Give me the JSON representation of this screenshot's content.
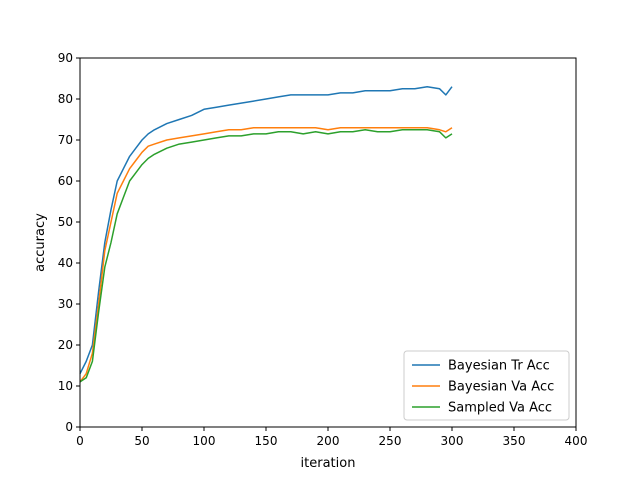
{
  "chart_data": {
    "type": "line",
    "title": "",
    "xlabel": "iteration",
    "ylabel": "accuracy",
    "xlim": [
      0,
      400
    ],
    "ylim": [
      0,
      90
    ],
    "xticks": [
      0,
      50,
      100,
      150,
      200,
      250,
      300,
      350,
      400
    ],
    "yticks": [
      0,
      10,
      20,
      30,
      40,
      50,
      60,
      70,
      80,
      90
    ],
    "grid": false,
    "legend_position": "lower-right",
    "series": [
      {
        "name": "Bayesian Tr Acc",
        "color": "#1f77b4",
        "x": [
          0,
          5,
          10,
          15,
          20,
          25,
          30,
          35,
          40,
          45,
          50,
          55,
          60,
          70,
          80,
          90,
          100,
          110,
          120,
          130,
          140,
          150,
          160,
          170,
          180,
          190,
          200,
          210,
          220,
          230,
          240,
          250,
          260,
          270,
          280,
          290,
          295,
          300
        ],
        "y": [
          13,
          16,
          20,
          33,
          45,
          53,
          60,
          63,
          66,
          68,
          70,
          71.5,
          72.5,
          74,
          75,
          76,
          77.5,
          78,
          78.5,
          79,
          79.5,
          80,
          80.5,
          81,
          81,
          81,
          81,
          81.5,
          81.5,
          82,
          82,
          82,
          82.5,
          82.5,
          83,
          82.5,
          81,
          83
        ]
      },
      {
        "name": "Bayesian Va Acc",
        "color": "#ff7f0e",
        "x": [
          0,
          5,
          10,
          15,
          20,
          25,
          30,
          35,
          40,
          45,
          50,
          55,
          60,
          70,
          80,
          90,
          100,
          110,
          120,
          130,
          140,
          150,
          160,
          170,
          180,
          190,
          200,
          210,
          220,
          230,
          240,
          250,
          260,
          270,
          280,
          290,
          295,
          300
        ],
        "y": [
          11,
          13,
          18,
          30,
          43,
          50,
          57,
          60,
          63,
          65,
          67,
          68.5,
          69,
          70,
          70.5,
          71,
          71.5,
          72,
          72.5,
          72.5,
          73,
          73,
          73,
          73,
          73,
          73,
          72.5,
          73,
          73,
          73,
          73,
          73,
          73,
          73,
          73,
          72.5,
          72,
          73
        ]
      },
      {
        "name": "Sampled Va Acc",
        "color": "#2ca02c",
        "x": [
          0,
          5,
          10,
          15,
          20,
          25,
          30,
          35,
          40,
          45,
          50,
          55,
          60,
          70,
          80,
          90,
          100,
          110,
          120,
          130,
          140,
          150,
          160,
          170,
          180,
          190,
          200,
          210,
          220,
          230,
          240,
          250,
          260,
          270,
          280,
          290,
          295,
          300
        ],
        "y": [
          11,
          12,
          16,
          28,
          39,
          45,
          52,
          56,
          60,
          62,
          64,
          65.5,
          66.5,
          68,
          69,
          69.5,
          70,
          70.5,
          71,
          71,
          71.5,
          71.5,
          72,
          72,
          71.5,
          72,
          71.5,
          72,
          72,
          72.5,
          72,
          72,
          72.5,
          72.5,
          72.5,
          72,
          70.5,
          71.5
        ]
      }
    ]
  }
}
